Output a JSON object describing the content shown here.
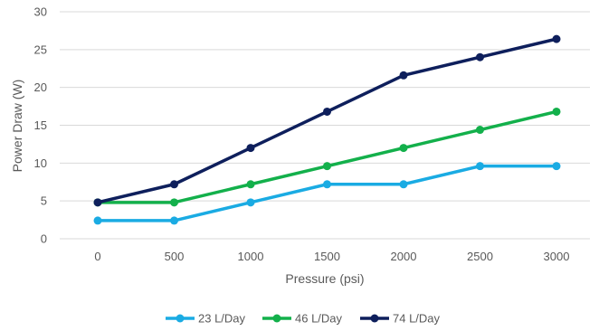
{
  "chart_data": {
    "type": "line",
    "xlabel": "Pressure (psi)",
    "ylabel": "Power Draw (W)",
    "x": [
      0,
      500,
      1000,
      1500,
      2000,
      2500,
      3000
    ],
    "xticks": [
      "0",
      "500",
      "1000",
      "1500",
      "2000",
      "2500",
      "3000"
    ],
    "ylim": [
      0,
      30
    ],
    "yticks": [
      0,
      5,
      10,
      15,
      20,
      25,
      30
    ],
    "grid": "horizontal",
    "legend_position": "bottom",
    "series": [
      {
        "name": "23 L/Day",
        "color": "#1aabe3",
        "values": [
          2.4,
          2.4,
          4.8,
          7.2,
          7.2,
          9.6,
          9.6
        ]
      },
      {
        "name": "46 L/Day",
        "color": "#13b04b",
        "values": [
          4.8,
          4.8,
          7.2,
          9.6,
          12.0,
          14.4,
          16.8
        ]
      },
      {
        "name": "74 L/Day",
        "color": "#0e1f5c",
        "values": [
          4.8,
          7.2,
          12.0,
          16.8,
          21.6,
          24.0,
          26.4
        ]
      }
    ]
  }
}
